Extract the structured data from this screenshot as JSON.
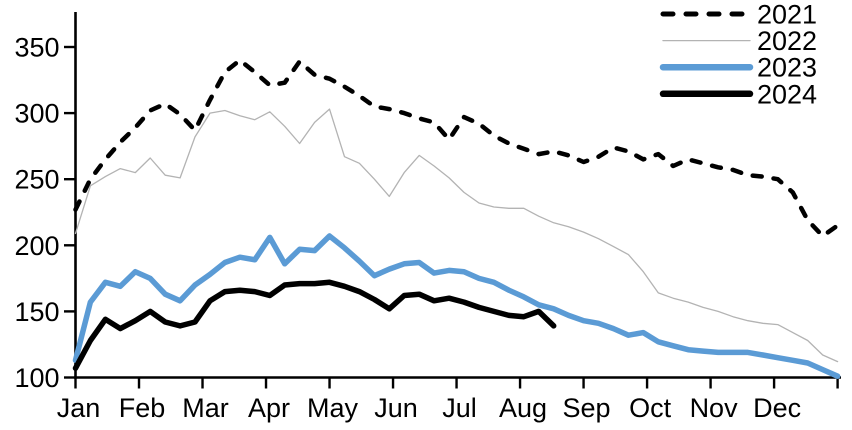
{
  "chart_data": {
    "type": "line",
    "title": "",
    "x_unit": "weeks",
    "months": [
      "Jan",
      "Feb",
      "Mar",
      "Apr",
      "May",
      "Jun",
      "Jul",
      "Aug",
      "Sep",
      "Oct",
      "Nov",
      "Dec"
    ],
    "y_ticks": [
      100,
      150,
      200,
      250,
      300,
      350
    ],
    "ylim": [
      100,
      350
    ],
    "grid": false,
    "legend_position": "top-right",
    "axis_color": "#000000",
    "series": [
      {
        "name": "2021",
        "color": "#000000",
        "line_style": "dashed",
        "line_width": 4.5,
        "values": [
          227,
          250,
          265,
          278,
          289,
          302,
          307,
          299,
          287,
          310,
          331,
          340,
          331,
          321,
          323,
          339,
          329,
          326,
          320,
          313,
          305,
          303,
          300,
          296,
          293,
          280,
          297,
          292,
          283,
          277,
          273,
          269,
          271,
          268,
          263,
          267,
          274,
          271,
          265,
          269,
          260,
          265,
          262,
          259,
          257,
          253,
          252,
          250,
          240,
          219,
          207,
          215
        ]
      },
      {
        "name": "2022",
        "color": "#b3b3b3",
        "line_style": "solid",
        "line_width": 1.3,
        "values": [
          209,
          245,
          252,
          258,
          255,
          266,
          253,
          251,
          282,
          300,
          302,
          298,
          295,
          301,
          290,
          277,
          293,
          303,
          267,
          262,
          250,
          237,
          255,
          268,
          260,
          251,
          240,
          232,
          229,
          228,
          228,
          222,
          217,
          214,
          210,
          205,
          199,
          193,
          180,
          164,
          160,
          157,
          153,
          150,
          146,
          143,
          141,
          140,
          134,
          128,
          117,
          112
        ]
      },
      {
        "name": "2023",
        "color": "#5b9bd5",
        "line_style": "solid",
        "line_width": 5.5,
        "values": [
          113,
          157,
          172,
          169,
          180,
          175,
          163,
          158,
          170,
          178,
          187,
          191,
          189,
          206,
          186,
          197,
          196,
          207,
          198,
          188,
          177,
          182,
          186,
          187,
          179,
          181,
          180,
          175,
          172,
          166,
          161,
          155,
          152,
          147,
          143,
          141,
          137,
          132,
          134,
          127,
          124,
          121,
          120,
          119,
          119,
          119,
          117,
          115,
          113,
          111,
          106,
          101
        ]
      },
      {
        "name": "2024",
        "color": "#000000",
        "line_style": "solid",
        "line_width": 5.5,
        "values": [
          107,
          128,
          144,
          137,
          143,
          150,
          142,
          139,
          142,
          158,
          165,
          166,
          165,
          162,
          170,
          171,
          171,
          172,
          169,
          165,
          159,
          152,
          162,
          163,
          158,
          160,
          157,
          153,
          150,
          147,
          146,
          150,
          139
        ]
      }
    ]
  }
}
